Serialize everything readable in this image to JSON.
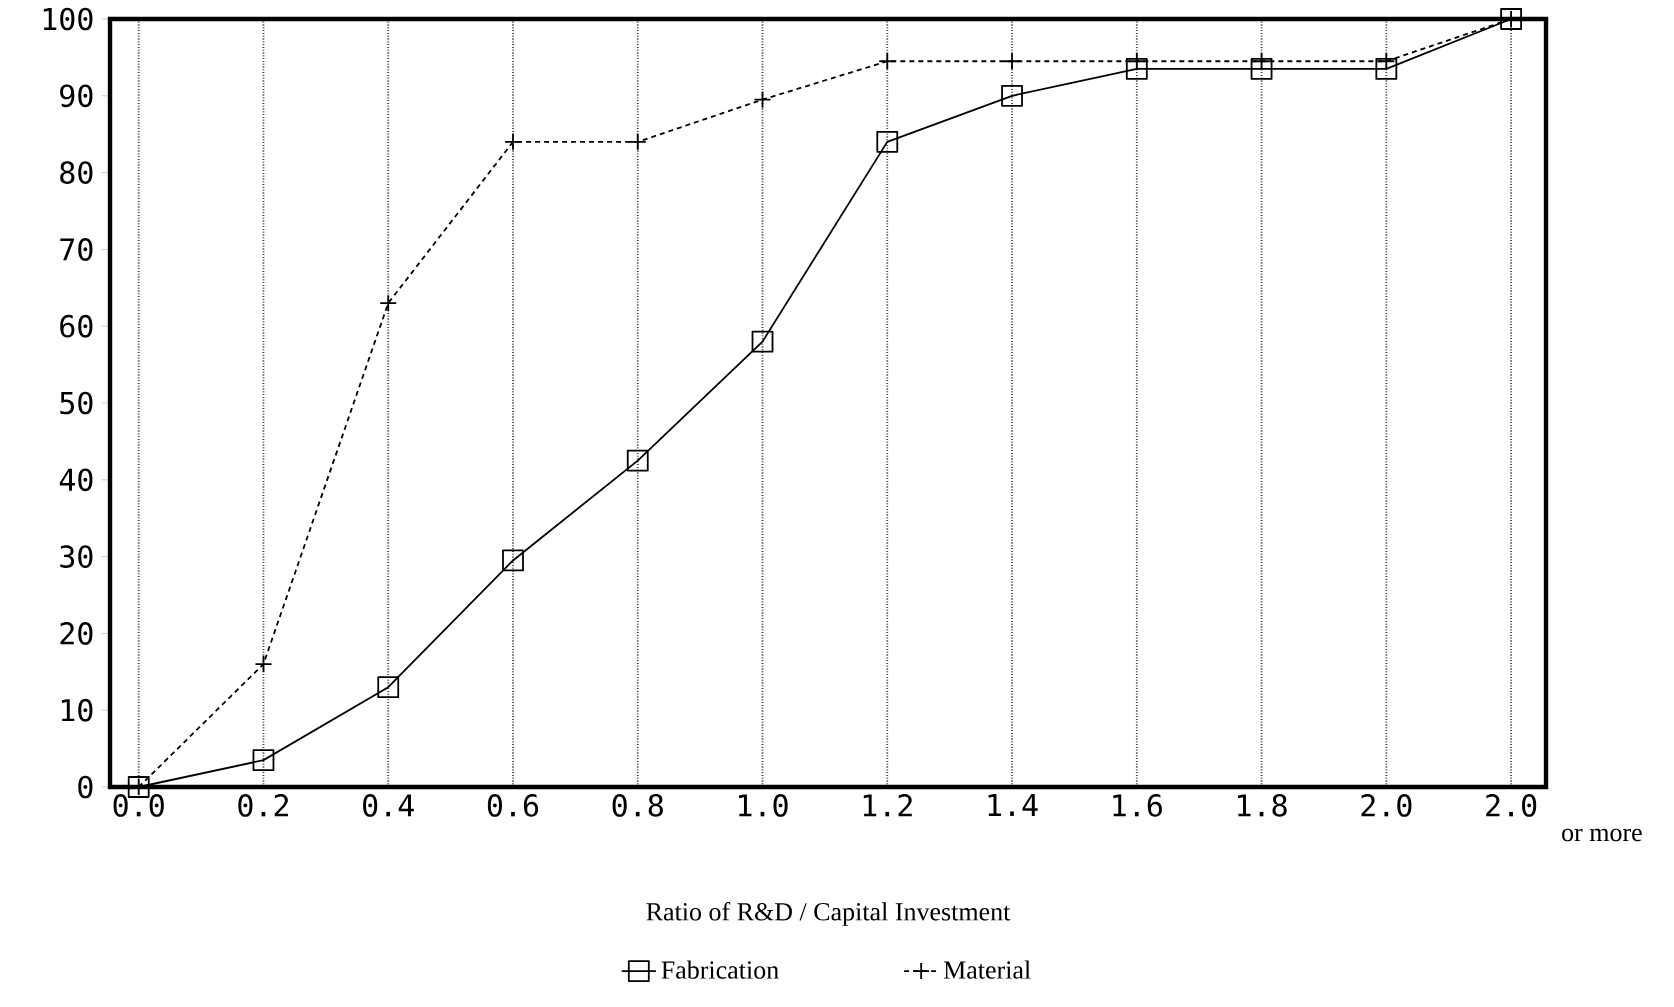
{
  "chart_data": {
    "type": "line",
    "xlabel": "Ratio of R&D / Capital Investment",
    "categories": [
      "0.0",
      "0.2",
      "0.4",
      "0.6",
      "0.8",
      "1.0",
      "1.2",
      "1.4",
      "1.6",
      "1.8",
      "2.0",
      "2.0"
    ],
    "series": [
      {
        "name": "Fabrication",
        "color": "#000000",
        "marker": "square",
        "line_style": "solid",
        "values": [
          0,
          3.5,
          13,
          29.5,
          42.5,
          58,
          84,
          90,
          93.5,
          93.5,
          93.5,
          100
        ]
      },
      {
        "name": "Material",
        "color": "#000000",
        "marker": "cross",
        "line_style": "dotted",
        "values": [
          0,
          16,
          63,
          84,
          84,
          89.5,
          94.5,
          94.5,
          94.5,
          94.5,
          94.5,
          100
        ]
      }
    ],
    "ylim": [
      0,
      100
    ],
    "yticks": [
      0,
      10,
      20,
      30,
      40,
      50,
      60,
      70,
      80,
      90,
      100
    ],
    "grid": "x",
    "legend": "bottom",
    "annotations": [
      "or more"
    ]
  }
}
